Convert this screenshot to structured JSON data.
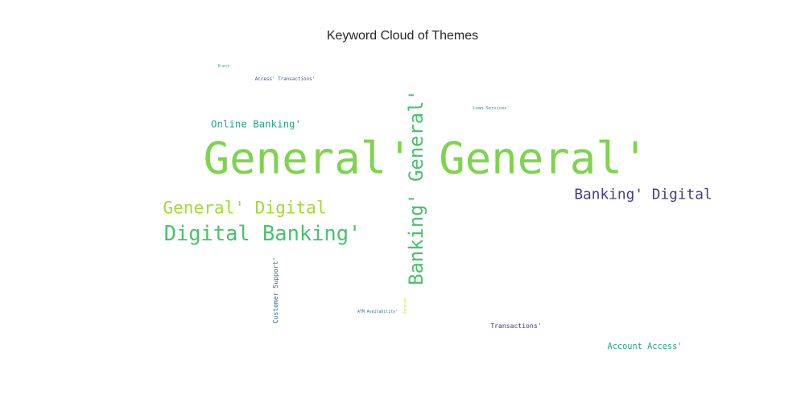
{
  "title": "Keyword Cloud of Themes",
  "chart_data": {
    "type": "wordcloud",
    "title": "Keyword Cloud of Themes",
    "words": [
      {
        "text": "General' General'",
        "weight": 100,
        "color": "#7fd34e",
        "orientation": "horizontal"
      },
      {
        "text": "Banking' General'",
        "weight": 44,
        "color": "#4ac16d",
        "orientation": "vertical"
      },
      {
        "text": "Digital Banking'",
        "weight": 47,
        "color": "#4ac16d",
        "orientation": "horizontal"
      },
      {
        "text": "General' Digital",
        "weight": 39,
        "color": "#a2da37",
        "orientation": "horizontal"
      },
      {
        "text": "Banking' Digital",
        "weight": 33,
        "color": "#433e85",
        "orientation": "horizontal"
      },
      {
        "text": "Online Banking'",
        "weight": 23,
        "color": "#26a784",
        "orientation": "horizontal"
      },
      {
        "text": "Account Access'",
        "weight": 19,
        "color": "#22a884",
        "orientation": "horizontal"
      },
      {
        "text": "Customer Support'",
        "weight": 15,
        "color": "#31668e",
        "orientation": "vertical"
      },
      {
        "text": "Transactions'",
        "weight": 15,
        "color": "#472d7b",
        "orientation": "horizontal"
      },
      {
        "text": "Access' Transactions'",
        "weight": 11,
        "color": "#3b528b",
        "orientation": "horizontal"
      },
      {
        "text": "Loan Services'",
        "weight": 10,
        "color": "#21918c",
        "orientation": "horizontal"
      },
      {
        "text": "ATM Availability'",
        "weight": 9,
        "color": "#2c728e",
        "orientation": "horizontal"
      },
      {
        "text": "Branch",
        "weight": 7,
        "color": "#1fa187",
        "orientation": "horizontal"
      },
      {
        "text": "Services'",
        "weight": 6,
        "color": "#b5de2b",
        "orientation": "vertical"
      }
    ]
  }
}
